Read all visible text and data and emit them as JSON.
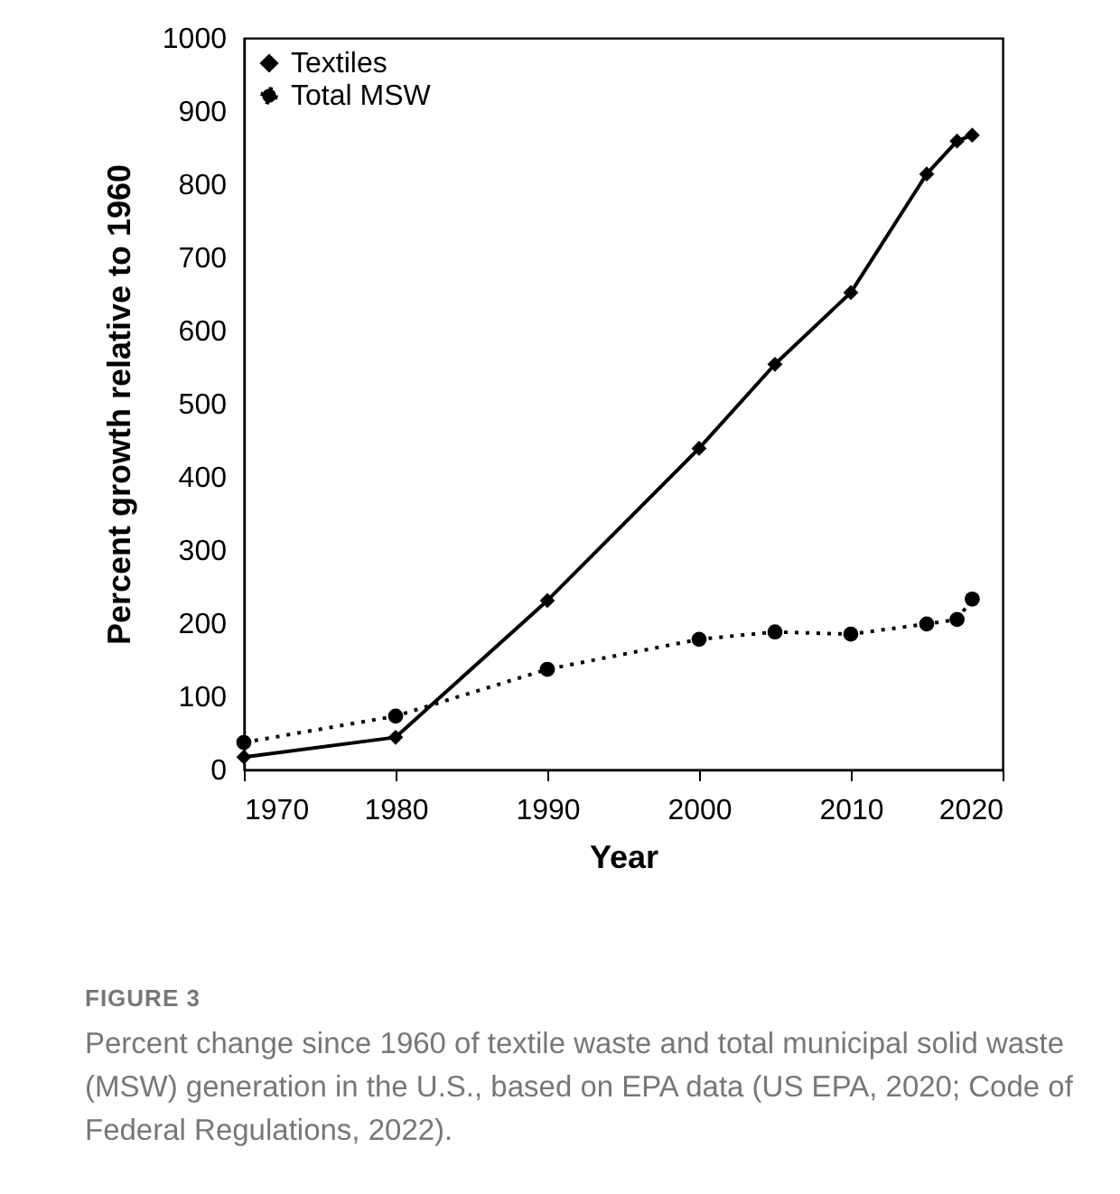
{
  "chart_data": {
    "type": "line",
    "xlabel": "Year",
    "ylabel": "Percent growth relative to 1960",
    "xlim": [
      1970,
      2020
    ],
    "xticks": [
      1970,
      1980,
      1990,
      2000,
      2010,
      2020
    ],
    "ylim": [
      0,
      1000
    ],
    "yticks": [
      0,
      100,
      200,
      300,
      400,
      500,
      600,
      700,
      800,
      900,
      1000
    ],
    "grid": false,
    "legend": "top left",
    "x": [
      1970,
      1980,
      1990,
      2000,
      2005,
      2010,
      2015,
      2017,
      2018
    ],
    "series": [
      {
        "name": "Textiles",
        "color": "#000000",
        "marker": "diamond",
        "line_style": "solid",
        "values": [
          17,
          44,
          231,
          439,
          554,
          652,
          814,
          859,
          867
        ]
      },
      {
        "name": "Total MSW",
        "color": "#000000",
        "marker": "circle",
        "line_style": "dotted",
        "values": [
          37,
          73,
          137,
          178,
          188,
          185,
          199,
          205,
          233
        ]
      }
    ],
    "annotations": [
      "FIGURE 3",
      "Percent change since 1960 of textile waste and total municipal solid waste (MSW) generation in the U.S., based on EPA data (US EPA, 2020; Code of Federal Regulations, 2022)."
    ]
  }
}
